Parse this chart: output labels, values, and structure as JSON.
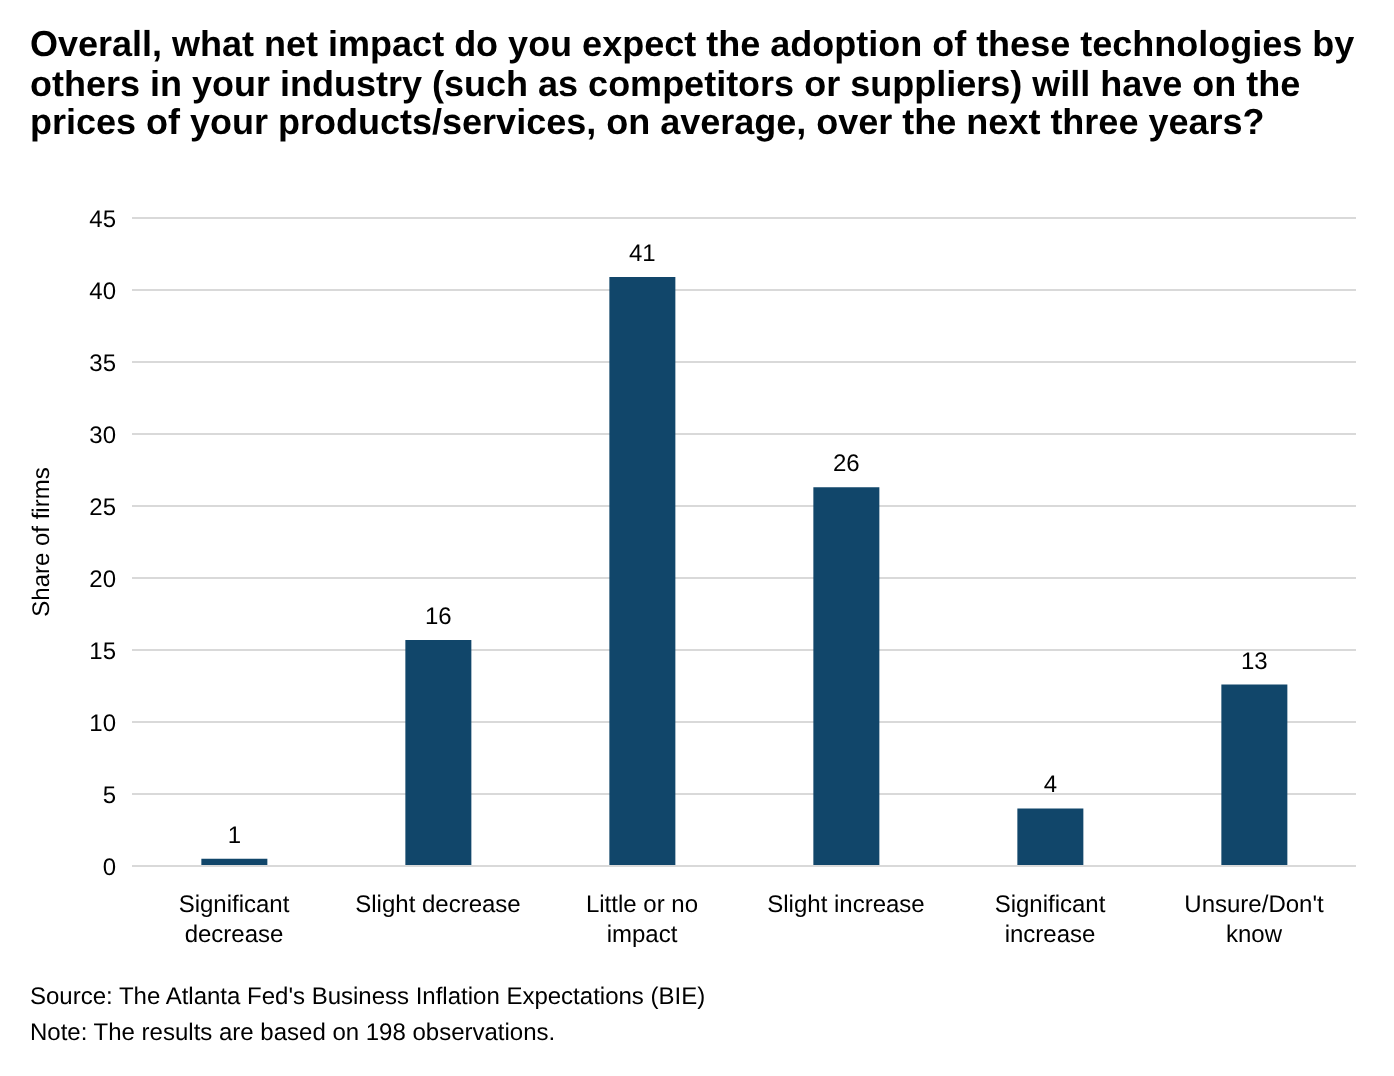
{
  "chart_data": {
    "type": "bar",
    "title": "Overall, what net impact do you expect the adoption of these technologies by others in your industry (such as competitors or suppliers) will have on the prices of your products/services, on average, over the next three years?",
    "ylabel": "Share of firms",
    "categories": [
      "Significant decrease",
      "Slight decrease",
      "Little or no impact",
      "Slight increase",
      "Significant increase",
      "Unsure/Don't know"
    ],
    "values": [
      0.5,
      15.7,
      40.9,
      26.3,
      4,
      12.6
    ],
    "value_labels": [
      "1",
      "16",
      "41",
      "26",
      "4",
      "13"
    ],
    "color": "#11466a",
    "ylim": [
      0,
      45
    ],
    "yticks": [
      0,
      5,
      10,
      15,
      20,
      25,
      30,
      35,
      40,
      45
    ],
    "grid": "y",
    "annotations": [
      "Source: The Atlanta Fed's Business Inflation Expectations (BIE)",
      "Note: The results are based on 198 observations."
    ]
  }
}
